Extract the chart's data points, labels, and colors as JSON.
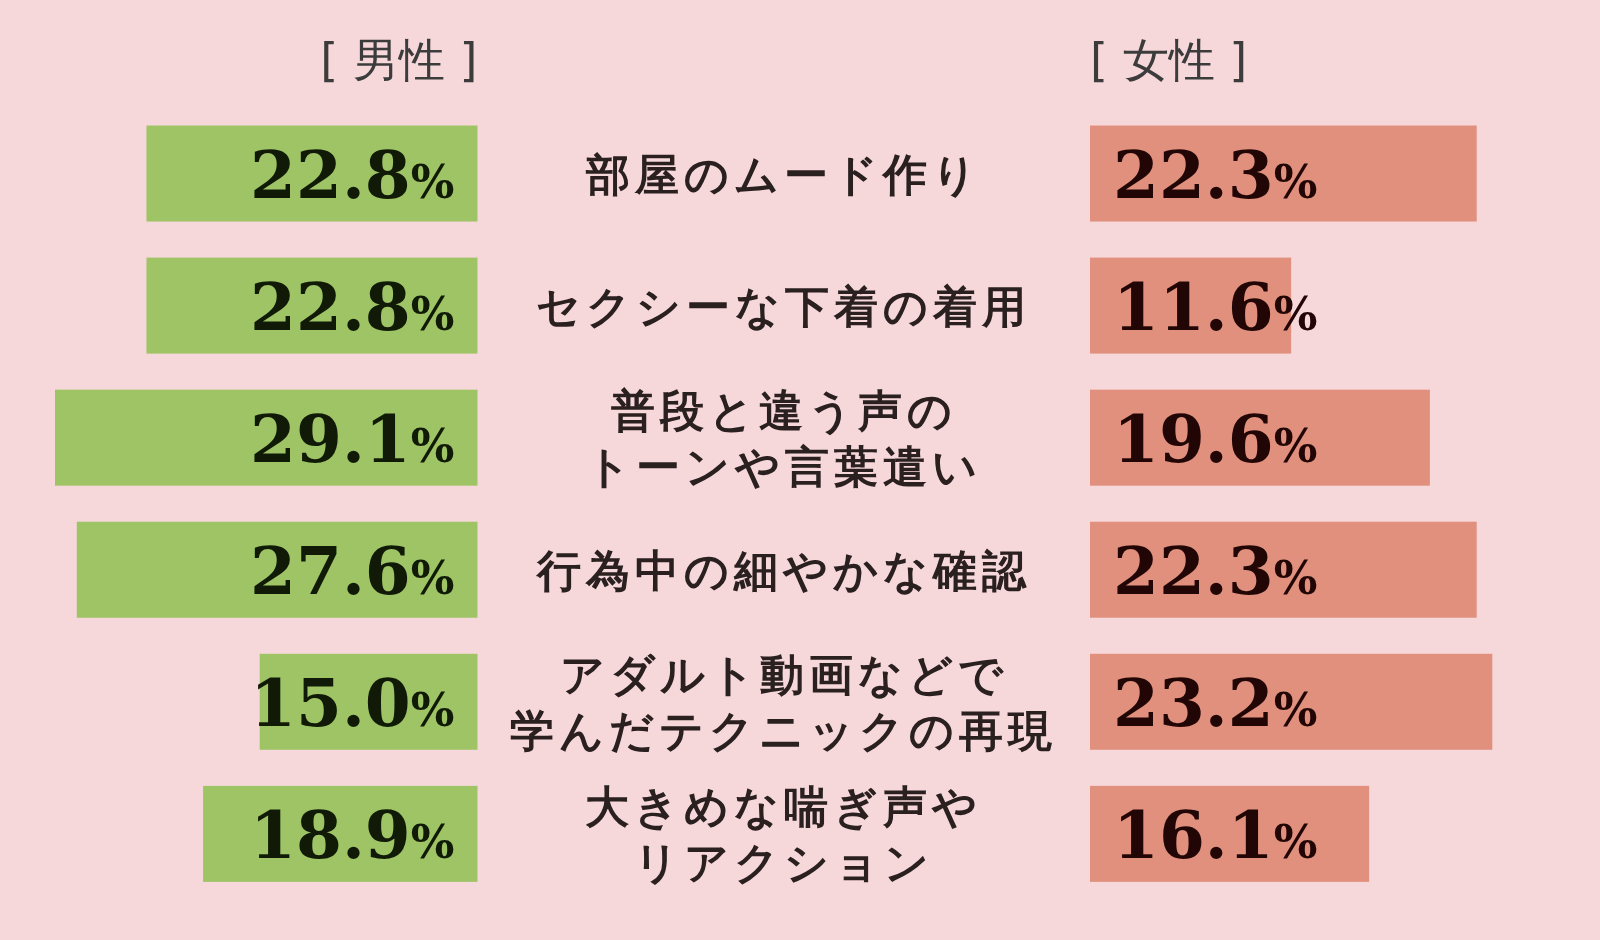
{
  "chart_data": [
    {
      "type": "bar",
      "orientation": "horizontal",
      "title": "[ 男性 ]",
      "categories": [
        "部屋のムード作り",
        "セクシーな下着の着用",
        "普段と違う声のトーンや言葉遣い",
        "行為中の細やかな確認",
        "アダルト動画などで学んだテクニックの再現",
        "大きめな喘ぎ声やリアクション"
      ],
      "values": [
        22.8,
        22.8,
        29.1,
        27.6,
        15.0,
        18.9
      ],
      "value_labels": [
        "22.8%",
        "22.8%",
        "29.1%",
        "27.6%",
        "15.0%",
        "18.9%"
      ],
      "color": "#9ec466"
    },
    {
      "type": "bar",
      "orientation": "horizontal",
      "title": "[ 女性 ]",
      "categories": [
        null,
        null,
        null,
        null,
        null,
        null
      ],
      "values": [
        22.3,
        11.6,
        19.6,
        22.3,
        23.2,
        16.1
      ],
      "value_labels": [
        "22.3%",
        "11.6%",
        "19.6%",
        "22.3%",
        "23.2%",
        "16.1%"
      ],
      "color": "#e0907d"
    }
  ]
}
